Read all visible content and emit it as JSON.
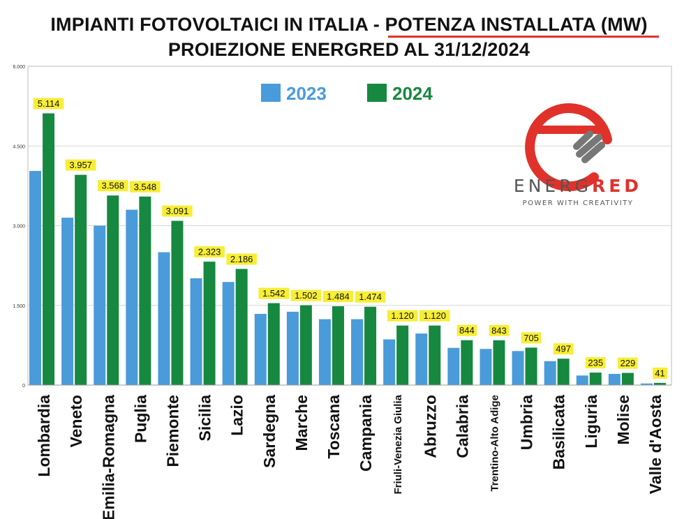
{
  "title_line1": "IMPIANTI FOTOVOLTAICI IN ITALIA - ",
  "title_line1_highlight": "POTENZA INSTALLATA (MW)",
  "title_line2": "PROIEZIONE ENERGRED AL 31/12/2024",
  "logo": {
    "name_prefix": "ENERG",
    "name_suffix": "RED",
    "tagline": "POWER WITH CREATIVITY"
  },
  "colors": {
    "series_2023": "#4a9bd9",
    "series_2024": "#16883f",
    "label_bg": "#f7ee35",
    "accent_red": "#e0322b"
  },
  "chart_data": {
    "type": "bar",
    "ylim": [
      0,
      6000
    ],
    "yticks": [
      "0",
      "1.500",
      "3.000",
      "4.500",
      "6.000"
    ],
    "ytick_values": [
      0,
      1500,
      3000,
      4500,
      6000
    ],
    "grid": true,
    "legend_placement": "top-center",
    "categories": [
      "Lombardia",
      "Veneto",
      "Emilia-Romagna",
      "Puglia",
      "Piemonte",
      "Sicilia",
      "Lazio",
      "Sardegna",
      "Marche",
      "Toscana",
      "Campania",
      "Friuli-Venezia Giulia",
      "Abruzzo",
      "Calabria",
      "Trentino-Alto Adige",
      "Umbria",
      "Basilicata",
      "Liguria",
      "Molise",
      "Valle d'Aosta"
    ],
    "series": [
      {
        "name": "2023",
        "values": [
          4030,
          3150,
          3000,
          3300,
          2500,
          2010,
          1940,
          1340,
          1380,
          1240,
          1240,
          860,
          970,
          700,
          680,
          640,
          450,
          180,
          210,
          30
        ]
      },
      {
        "name": "2024",
        "values": [
          5114,
          3957,
          3568,
          3548,
          3091,
          2323,
          2186,
          1542,
          1502,
          1484,
          1474,
          1120,
          1120,
          844,
          843,
          705,
          497,
          235,
          229,
          41
        ]
      }
    ],
    "data_labels_2024": [
      "5.114",
      "3.957",
      "3.568",
      "3.548",
      "3.091",
      "2.323",
      "2.186",
      "1.542",
      "1.502",
      "1.484",
      "1.474",
      "1.120",
      "1.120",
      "844",
      "843",
      "705",
      "497",
      "235",
      "229",
      "41"
    ]
  }
}
